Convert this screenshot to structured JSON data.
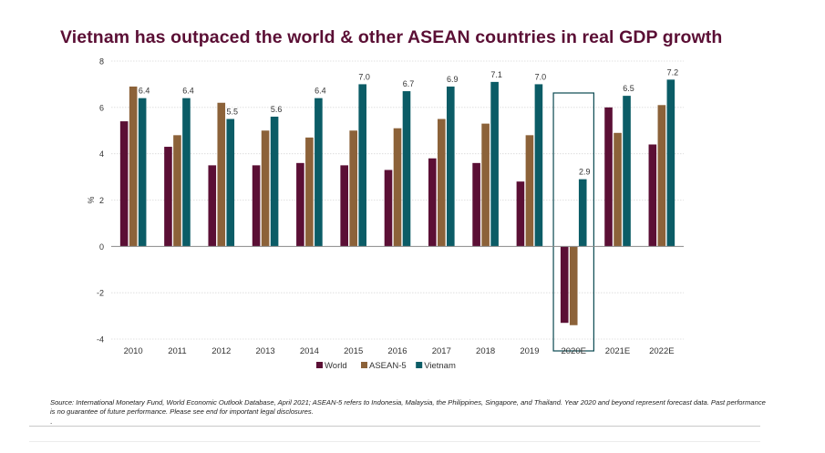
{
  "chart_data": {
    "type": "bar",
    "title": "Vietnam has outpaced the world & other ASEAN countries in real GDP growth",
    "ylabel": "%",
    "xlabel": "",
    "ylim": [
      -4,
      8
    ],
    "yticks": [
      -4,
      -2,
      0,
      2,
      4,
      6,
      8
    ],
    "grid": true,
    "legend_position": "bottom",
    "categories": [
      "2010",
      "2011",
      "2012",
      "2013",
      "2014",
      "2015",
      "2016",
      "2017",
      "2018",
      "2019",
      "2020E",
      "2021E",
      "2022E"
    ],
    "highlighted_category": "2020E",
    "series": [
      {
        "name": "World",
        "color": "#5b0f35",
        "values": [
          5.4,
          4.3,
          3.5,
          3.5,
          3.6,
          3.5,
          3.3,
          3.8,
          3.6,
          2.8,
          -3.3,
          6.0,
          4.4
        ]
      },
      {
        "name": "ASEAN-5",
        "color": "#8c6239",
        "values": [
          6.9,
          4.8,
          6.2,
          5.0,
          4.7,
          5.0,
          5.1,
          5.5,
          5.3,
          4.8,
          -3.4,
          4.9,
          6.1
        ]
      },
      {
        "name": "Vietnam",
        "color": "#0b5c66",
        "values": [
          6.4,
          6.4,
          5.5,
          5.6,
          6.4,
          7.0,
          6.7,
          6.9,
          7.1,
          7.0,
          2.9,
          6.5,
          7.2
        ]
      }
    ],
    "data_labels": [
      "6.4",
      "6.4",
      "5.5",
      "5.6",
      "6.4",
      "7.0",
      "6.7",
      "6.9",
      "7.1",
      "7.0",
      "2.9",
      "6.5",
      "7.2"
    ]
  },
  "footnote": {
    "source": "Source: International Monetary Fund, World Economic Outlook Database, April 2021; ASEAN-5 refers to Indonesia, Malaysia, the Philippines, Singapore, and Thailand.  Year 2020 and beyond represent forecast data. Past performance is no guarantee of future performance. Please see end for important legal disclosures.",
    "dot": "."
  }
}
